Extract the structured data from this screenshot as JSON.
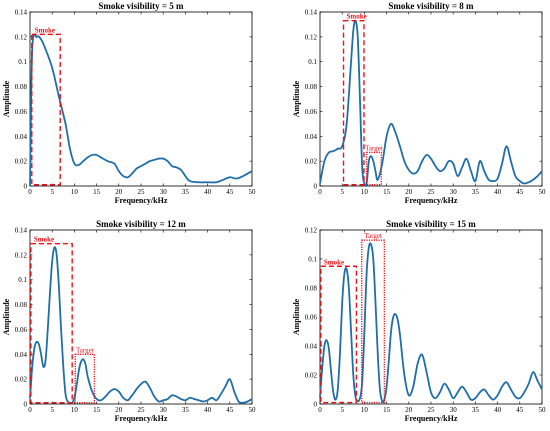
{
  "chart_data": [
    {
      "type": "line",
      "title": "Smoke visibility = 5 m",
      "xlabel": "Frequency/kHz",
      "ylabel": "Amplitude",
      "xlim": [
        0,
        50
      ],
      "ylim": [
        0,
        0.14
      ],
      "xticks": [
        0,
        5,
        10,
        15,
        20,
        25,
        30,
        35,
        40,
        45,
        50
      ],
      "yticks": [
        0,
        0.02,
        0.04,
        0.06,
        0.08,
        0.1,
        0.12,
        0.14
      ],
      "ytick_labels": [
        "0",
        "0.02",
        "0.04",
        "0.06",
        "0.08",
        "0.1",
        "0.12",
        "0.14"
      ],
      "grid": false,
      "line_color": "#1f6ea8",
      "series": [
        {
          "x": [
            0,
            0.5,
            1.5,
            2.5,
            3.5,
            5,
            6.5,
            8,
            9,
            10,
            11,
            12,
            13,
            14,
            15,
            16,
            17.5,
            19,
            20,
            21,
            22,
            23,
            24,
            25,
            26,
            27,
            28,
            29,
            30,
            31,
            32,
            33,
            34,
            35,
            36,
            38,
            40,
            42,
            43.5,
            45,
            46.5,
            48,
            50
          ],
          "y": [
            0,
            0.11,
            0.12,
            0.118,
            0.11,
            0.095,
            0.072,
            0.05,
            0.03,
            0.018,
            0.017,
            0.02,
            0.023,
            0.025,
            0.025,
            0.023,
            0.02,
            0.018,
            0.012,
            0.008,
            0.007,
            0.01,
            0.014,
            0.016,
            0.018,
            0.02,
            0.021,
            0.022,
            0.022,
            0.02,
            0.016,
            0.015,
            0.013,
            0.008,
            0.004,
            0.003,
            0.003,
            0.003,
            0.005,
            0.007,
            0.006,
            0.008,
            0.012
          ]
        }
      ],
      "annotations": [
        {
          "label": "Smoke",
          "style": "dashed",
          "x0": 0.4,
          "x1": 6.8,
          "y0": 0.001,
          "y1": 0.122
        }
      ]
    },
    {
      "type": "line",
      "title": "Smoke visibility = 8 m",
      "xlabel": "Frequency/kHz",
      "ylabel": "Amplitude",
      "xlim": [
        0,
        50
      ],
      "ylim": [
        0,
        0.14
      ],
      "xticks": [
        0,
        5,
        10,
        15,
        20,
        25,
        30,
        35,
        40,
        45,
        50
      ],
      "yticks": [
        0,
        0.02,
        0.04,
        0.06,
        0.08,
        0.1,
        0.12,
        0.14
      ],
      "ytick_labels": [
        "0",
        "0.02",
        "0.04",
        "0.06",
        "0.08",
        "0.1",
        "0.12",
        "0.14"
      ],
      "grid": false,
      "line_color": "#1f6ea8",
      "series": [
        {
          "x": [
            0,
            1,
            2,
            3,
            4,
            5,
            6,
            7,
            7.5,
            8,
            8.5,
            9,
            9.5,
            10,
            10.5,
            11,
            11.5,
            12,
            12.5,
            13,
            14,
            15,
            16,
            17,
            18,
            19,
            20,
            21,
            22,
            23,
            24,
            25,
            26,
            27,
            28,
            29,
            30,
            31,
            32,
            33,
            34,
            35,
            36,
            37,
            38,
            39,
            40,
            41,
            42,
            43,
            44,
            45,
            46,
            47,
            48,
            49,
            50
          ],
          "y": [
            0.002,
            0.02,
            0.027,
            0.028,
            0.03,
            0.032,
            0.05,
            0.1,
            0.125,
            0.133,
            0.12,
            0.07,
            0.015,
            0.002,
            0.002,
            0.02,
            0.024,
            0.02,
            0.012,
            0.005,
            0.018,
            0.04,
            0.05,
            0.043,
            0.032,
            0.02,
            0.013,
            0.01,
            0.012,
            0.02,
            0.025,
            0.022,
            0.016,
            0.012,
            0.014,
            0.02,
            0.018,
            0.008,
            0.015,
            0.022,
            0.012,
            0.004,
            0.02,
            0.012,
            0.005,
            0.004,
            0.006,
            0.018,
            0.032,
            0.02,
            0.008,
            0.004,
            0.002,
            0.003,
            0.005,
            0.008,
            0.012
          ]
        }
      ],
      "annotations": [
        {
          "label": "Smoke",
          "style": "dashed",
          "x0": 5.3,
          "x1": 9.9,
          "y0": 0.001,
          "y1": 0.133
        },
        {
          "label": "Target",
          "style": "dotted",
          "x0": 10.5,
          "x1": 13.8,
          "y0": 0.001,
          "y1": 0.027
        }
      ]
    },
    {
      "type": "line",
      "title": "Smoke visibility = 12 m",
      "xlabel": "Frequency/kHz",
      "ylabel": "Amplitude",
      "xlim": [
        0,
        50
      ],
      "ylim": [
        0,
        0.14
      ],
      "xticks": [
        0,
        5,
        10,
        15,
        20,
        25,
        30,
        35,
        40,
        45,
        50
      ],
      "yticks": [
        0,
        0.02,
        0.04,
        0.06,
        0.08,
        0.1,
        0.12,
        0.14
      ],
      "ytick_labels": [
        "0",
        "0.02",
        "0.04",
        "0.06",
        "0.08",
        "0.1",
        "0.12",
        "0.14"
      ],
      "grid": false,
      "line_color": "#1f6ea8",
      "series": [
        {
          "x": [
            0,
            0.5,
            1,
            1.5,
            2,
            2.5,
            3,
            3.5,
            4,
            4.5,
            5,
            5.5,
            6,
            6.5,
            7,
            7.5,
            8,
            8.5,
            9,
            9.5,
            10,
            10.5,
            11,
            11.5,
            12,
            12.5,
            13,
            14,
            15,
            16,
            17,
            18,
            19,
            20,
            21,
            22,
            23,
            24,
            25,
            26,
            27,
            28,
            29,
            30,
            31,
            32,
            33,
            34,
            35,
            36,
            37,
            38,
            39,
            40,
            41,
            42,
            43,
            44,
            45,
            46,
            47,
            48,
            49,
            50
          ],
          "y": [
            0.005,
            0.03,
            0.045,
            0.05,
            0.048,
            0.04,
            0.03,
            0.035,
            0.06,
            0.09,
            0.115,
            0.126,
            0.12,
            0.095,
            0.06,
            0.03,
            0.008,
            0.002,
            0.001,
            0.001,
            0.005,
            0.015,
            0.027,
            0.034,
            0.036,
            0.032,
            0.022,
            0.01,
            0.004,
            0.003,
            0.006,
            0.01,
            0.012,
            0.01,
            0.005,
            0.003,
            0.007,
            0.012,
            0.016,
            0.018,
            0.013,
            0.006,
            0.002,
            0.003,
            0.004,
            0.007,
            0.006,
            0.004,
            0.003,
            0.005,
            0.004,
            0.003,
            0.002,
            0.003,
            0.005,
            0.003,
            0.008,
            0.014,
            0.02,
            0.01,
            0.002,
            0.001,
            0.002,
            0.004
          ]
        }
      ],
      "annotations": [
        {
          "label": "Smoke",
          "style": "dashed",
          "x0": 0.2,
          "x1": 9.5,
          "y0": 0.001,
          "y1": 0.129
        },
        {
          "label": "Target",
          "style": "dotted",
          "x0": 10.2,
          "x1": 14.5,
          "y0": 0.001,
          "y1": 0.04
        }
      ]
    },
    {
      "type": "line",
      "title": "Smoke visibility = 15 m",
      "xlabel": "Frequency/kHz",
      "ylabel": "Amplitude",
      "xlim": [
        0,
        50
      ],
      "ylim": [
        0,
        0.12
      ],
      "xticks": [
        0,
        5,
        10,
        15,
        20,
        25,
        30,
        35,
        40,
        45,
        50
      ],
      "yticks": [
        0,
        0.02,
        0.04,
        0.06,
        0.08,
        0.1,
        0.12
      ],
      "ytick_labels": [
        "0",
        "0.02",
        "0.04",
        "0.06",
        "0.08",
        "0.1",
        "0.12"
      ],
      "grid": false,
      "line_color": "#1f6ea8",
      "series": [
        {
          "x": [
            0,
            0.5,
            1,
            1.5,
            2,
            2.5,
            3,
            3.5,
            4,
            4.5,
            5,
            5.5,
            6,
            6.5,
            7,
            7.5,
            8,
            8.5,
            9,
            9.5,
            10,
            10.5,
            11,
            11.5,
            12,
            12.5,
            13,
            13.5,
            14,
            14.5,
            15,
            15.5,
            16,
            16.5,
            17,
            17.5,
            18,
            19,
            20,
            21,
            22,
            23,
            24,
            25,
            26,
            27,
            28,
            29,
            30,
            31,
            32,
            33,
            34,
            35,
            36,
            37,
            38,
            39,
            40,
            41,
            42,
            43,
            44,
            45,
            46,
            47,
            48,
            49,
            50
          ],
          "y": [
            0.005,
            0.025,
            0.04,
            0.044,
            0.038,
            0.022,
            0.008,
            0.003,
            0.01,
            0.035,
            0.07,
            0.09,
            0.093,
            0.08,
            0.05,
            0.02,
            0.005,
            0.002,
            0.004,
            0.015,
            0.05,
            0.09,
            0.108,
            0.11,
            0.1,
            0.07,
            0.035,
            0.01,
            0.002,
            0.003,
            0.012,
            0.03,
            0.05,
            0.06,
            0.062,
            0.058,
            0.048,
            0.02,
            0.006,
            0.012,
            0.028,
            0.034,
            0.022,
            0.008,
            0.004,
            0.008,
            0.014,
            0.01,
            0.004,
            0.008,
            0.012,
            0.008,
            0.003,
            0.004,
            0.008,
            0.01,
            0.006,
            0.003,
            0.006,
            0.012,
            0.015,
            0.01,
            0.005,
            0.004,
            0.008,
            0.014,
            0.022,
            0.016,
            0.01
          ]
        }
      ],
      "annotations": [
        {
          "label": "Smoke",
          "style": "dashed",
          "x0": 0.2,
          "x1": 8.2,
          "y0": 0.001,
          "y1": 0.095
        },
        {
          "label": "Target",
          "style": "dotted",
          "x0": 9.4,
          "x1": 14.5,
          "y0": 0.001,
          "y1": 0.113
        }
      ]
    }
  ]
}
